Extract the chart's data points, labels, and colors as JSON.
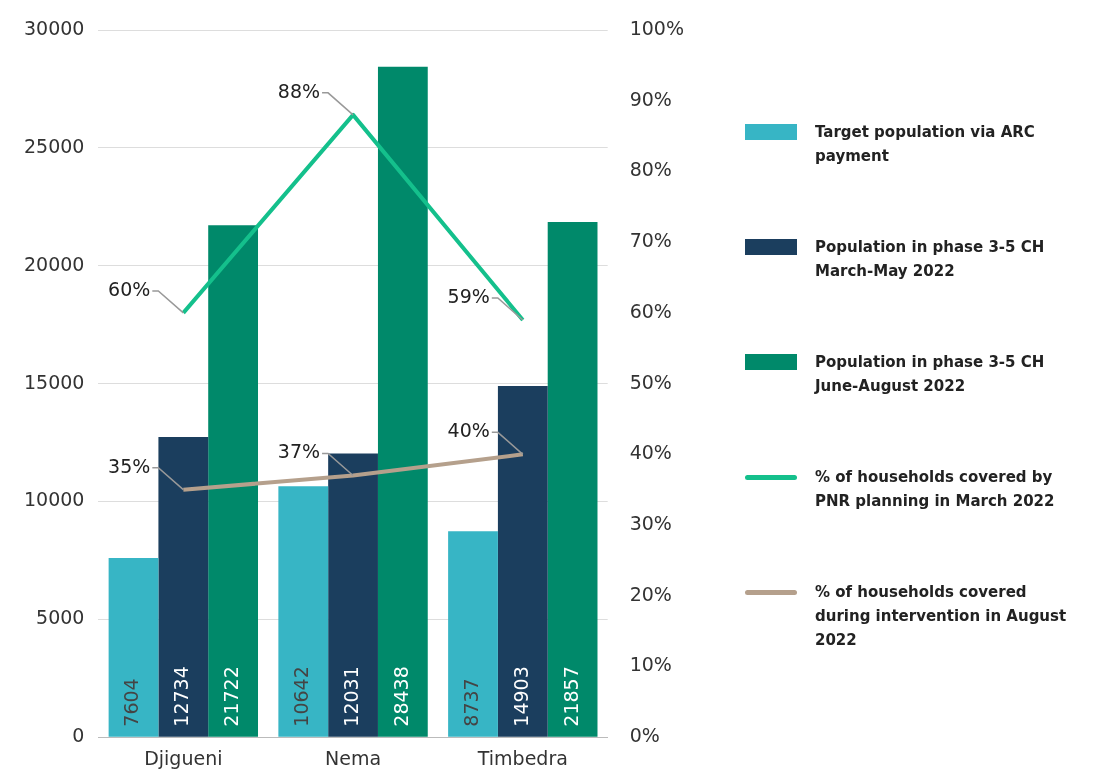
{
  "chart_data": {
    "type": "bar",
    "categories": [
      "Djigueni",
      "Nema",
      "Timbedra"
    ],
    "series": [
      {
        "name": "Target population via ARC payment",
        "color": "#37b5c5",
        "values": [
          7604,
          10642,
          8737
        ]
      },
      {
        "name": "Population in phase 3-5 CH March-May 2022",
        "color": "#1b3e5e",
        "values": [
          12734,
          12031,
          14903
        ]
      },
      {
        "name": "Population in phase 3-5 CH June-August 2022",
        "color": "#00896a",
        "values": [
          21722,
          28438,
          21857
        ]
      },
      {
        "name": "% of households covered by PNR planning in March 2022",
        "type": "line",
        "axis": "y2",
        "color": "#14c08c",
        "values": [
          60,
          88,
          59
        ],
        "value_labels": [
          "60%",
          "88%",
          "59%"
        ]
      },
      {
        "name": "% of households covered during intervention in August 2022",
        "type": "line",
        "axis": "y2",
        "color": "#b5a08c",
        "values": [
          35,
          37,
          40
        ],
        "value_labels": [
          "35%",
          "37%",
          "40%"
        ]
      }
    ],
    "ylim": [
      0,
      30000
    ],
    "yticks": [
      0,
      5000,
      10000,
      15000,
      20000,
      25000,
      30000
    ],
    "y2lim": [
      0,
      100
    ],
    "y2ticks": [
      {
        "value": 0,
        "label": "0%"
      },
      {
        "value": 10,
        "label": "10%"
      },
      {
        "value": 20,
        "label": "20%"
      },
      {
        "value": 30,
        "label": "30%"
      },
      {
        "value": 40,
        "label": "40%"
      },
      {
        "value": 50,
        "label": "50%"
      },
      {
        "value": 60,
        "label": "60%"
      },
      {
        "value": 70,
        "label": "70%"
      },
      {
        "value": 80,
        "label": "80%"
      },
      {
        "value": 90,
        "label": "90%"
      },
      {
        "value": 100,
        "label": "100%"
      }
    ],
    "grid": "y",
    "legend": "right",
    "data_labels": true,
    "marker": "none"
  }
}
